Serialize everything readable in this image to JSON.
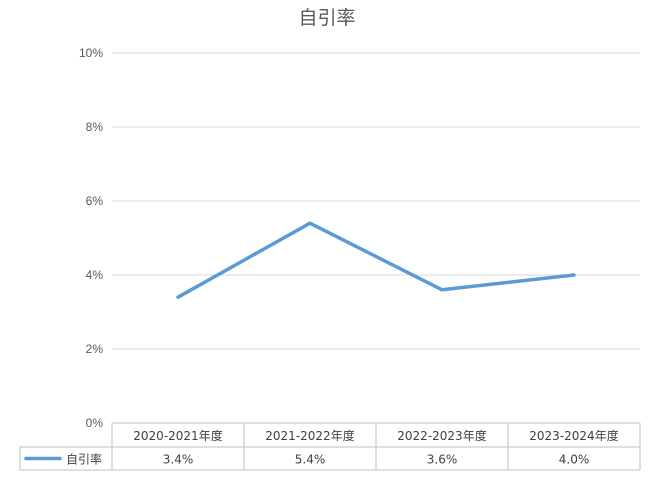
{
  "chart_data": {
    "type": "line",
    "title": "自引率",
    "categories": [
      "2020-2021年度",
      "2021-2022年度",
      "2022-2023年度",
      "2023-2024年度"
    ],
    "series": [
      {
        "name": "自引率",
        "values": [
          3.4,
          5.4,
          3.6,
          4.0
        ],
        "value_labels": [
          "3.4%",
          "5.4%",
          "3.6%",
          "4.0%"
        ],
        "color": "#5b9bd5"
      }
    ],
    "yticks": [
      "0%",
      "2%",
      "4%",
      "6%",
      "8%",
      "10%"
    ],
    "ylim": [
      0,
      10
    ],
    "xlabel": "",
    "ylabel": "",
    "grid": true,
    "legend": "data-table"
  }
}
